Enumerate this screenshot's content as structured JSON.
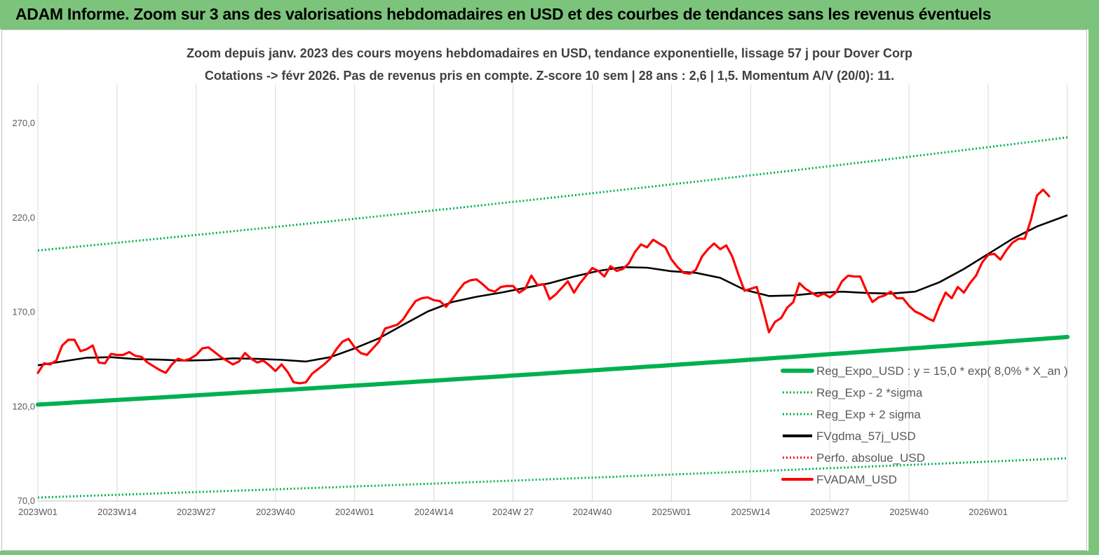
{
  "header": {
    "title": "ADAM Informe. Zoom sur 3 ans des valorisations hebdomadaires en USD et des courbes de tendances sans les revenus éventuels"
  },
  "chart_data": {
    "type": "line",
    "title_line1": "Zoom depuis janv. 2023 des cours moyens hebdomadaires en USD, tendance exponentielle, lissage 57 j pour Dover Corp",
    "title_line2": "Cotations -> févr 2026.  Pas de revenus pris en compte. Z-score 10 sem  | 28 ans : 2,6  | 1,5. Momentum A/V (20/0): 11.",
    "ylim": [
      70,
      290
    ],
    "y_ticks": [
      70,
      120,
      170,
      220,
      270
    ],
    "y_tick_labels": [
      "70,0",
      "120,0",
      "170,0",
      "220,0",
      "270,0"
    ],
    "x_ticks": [
      0,
      13,
      26,
      39,
      52,
      65,
      78,
      91,
      104,
      117,
      130,
      143,
      156
    ],
    "x_tick_labels": [
      "2023W01",
      "2023W14",
      "2023W27",
      "2023W40",
      "2024W01",
      "2024W14",
      "2024W 27",
      "2024W40",
      "2025W01",
      "2025W14",
      "2025W27",
      "2025W40",
      "2026W01"
    ],
    "x_max": 169,
    "grid_vertical": true,
    "legend_position": "bottom-right",
    "series": [
      {
        "name": "Reg_Expo_USD : y = 15,0 * exp( 8,0% *  X_an )",
        "color": "#00b050",
        "style": "solid-thick",
        "start": 120.7,
        "end": 156.5
      },
      {
        "name": "Reg_Exp - 2 *sigma",
        "color": "#00b050",
        "style": "dotted",
        "start": 71.5,
        "end": 92.3
      },
      {
        "name": "Reg_Exp + 2 sigma",
        "color": "#00b050",
        "style": "dotted",
        "start": 202.3,
        "end": 262.2
      },
      {
        "name": "FVgdma_57j_USD",
        "color": "#000000",
        "style": "solid",
        "points": [
          [
            0,
            141.5
          ],
          [
            4,
            143.5
          ],
          [
            8,
            145.5
          ],
          [
            12,
            145.8
          ],
          [
            16,
            144.8
          ],
          [
            20,
            144.5
          ],
          [
            24,
            144.0
          ],
          [
            28,
            144.3
          ],
          [
            32,
            145.2
          ],
          [
            36,
            144.9
          ],
          [
            40,
            144.4
          ],
          [
            44,
            143.5
          ],
          [
            48,
            145.8
          ],
          [
            52,
            150.5
          ],
          [
            56,
            155.8
          ],
          [
            60,
            163.0
          ],
          [
            64,
            170.0
          ],
          [
            68,
            175.0
          ],
          [
            72,
            177.8
          ],
          [
            76,
            180.0
          ],
          [
            80,
            182.5
          ],
          [
            84,
            185.0
          ],
          [
            88,
            188.5
          ],
          [
            92,
            191.5
          ],
          [
            96,
            193.5
          ],
          [
            100,
            193.2
          ],
          [
            104,
            191.3
          ],
          [
            108,
            190.5
          ],
          [
            112,
            187.8
          ],
          [
            116,
            181.5
          ],
          [
            120,
            178.2
          ],
          [
            124,
            178.5
          ],
          [
            128,
            179.8
          ],
          [
            132,
            180.5
          ],
          [
            136,
            179.8
          ],
          [
            140,
            179.5
          ],
          [
            144,
            180.5
          ],
          [
            148,
            185.5
          ],
          [
            152,
            192.5
          ],
          [
            156,
            200.5
          ],
          [
            160,
            208.5
          ],
          [
            164,
            215.0
          ],
          [
            169,
            221.0
          ]
        ]
      },
      {
        "name": "Perfo. absolue_USD",
        "color": "#ff0000",
        "style": "dotted",
        "points": []
      },
      {
        "name": "FVADAM_USD",
        "color": "#ff0000",
        "style": "solid-thick",
        "points": [
          [
            0,
            137.5
          ],
          [
            1,
            142.5
          ],
          [
            2,
            142
          ],
          [
            3,
            144
          ],
          [
            4,
            152
          ],
          [
            5,
            155
          ],
          [
            6,
            155
          ],
          [
            7,
            149
          ],
          [
            8,
            150
          ],
          [
            9,
            152
          ],
          [
            10,
            143
          ],
          [
            11,
            142.5
          ],
          [
            12,
            147.5
          ],
          [
            13,
            147
          ],
          [
            14,
            147
          ],
          [
            15,
            148.5
          ],
          [
            16,
            146.5
          ],
          [
            17,
            146
          ],
          [
            18,
            143
          ],
          [
            19,
            141
          ],
          [
            20,
            139
          ],
          [
            21,
            137.5
          ],
          [
            22,
            142
          ],
          [
            23,
            145
          ],
          [
            24,
            144
          ],
          [
            25,
            145
          ],
          [
            26,
            147
          ],
          [
            27,
            150.5
          ],
          [
            28,
            151
          ],
          [
            29,
            148.5
          ],
          [
            30,
            146
          ],
          [
            31,
            144
          ],
          [
            32,
            142
          ],
          [
            33,
            143.5
          ],
          [
            34,
            148
          ],
          [
            35,
            145
          ],
          [
            36,
            143
          ],
          [
            37,
            144
          ],
          [
            38,
            141.5
          ],
          [
            39,
            138.5
          ],
          [
            40,
            142
          ],
          [
            41,
            138
          ],
          [
            42,
            132.5
          ],
          [
            43,
            132
          ],
          [
            44,
            132.5
          ],
          [
            45,
            137
          ],
          [
            46,
            139.5
          ],
          [
            47,
            142
          ],
          [
            48,
            145
          ],
          [
            49,
            150
          ],
          [
            50,
            154
          ],
          [
            51,
            155.5
          ],
          [
            52,
            151
          ],
          [
            53,
            148
          ],
          [
            54,
            147
          ],
          [
            55,
            150.5
          ],
          [
            56,
            154
          ],
          [
            57,
            161
          ],
          [
            58,
            162
          ],
          [
            59,
            163
          ],
          [
            60,
            166
          ],
          [
            61,
            171
          ],
          [
            62,
            175.5
          ],
          [
            63,
            177
          ],
          [
            64,
            177.5
          ],
          [
            65,
            176
          ],
          [
            66,
            175.5
          ],
          [
            67,
            172.5
          ],
          [
            68,
            176.5
          ],
          [
            69,
            181
          ],
          [
            70,
            185
          ],
          [
            71,
            186.5
          ],
          [
            72,
            187
          ],
          [
            73,
            184.5
          ],
          [
            74,
            181.5
          ],
          [
            75,
            180.5
          ],
          [
            76,
            183
          ],
          [
            77,
            183.5
          ],
          [
            78,
            183.5
          ],
          [
            79,
            180
          ],
          [
            80,
            182
          ],
          [
            81,
            189
          ],
          [
            82,
            184
          ],
          [
            83,
            184.5
          ],
          [
            84,
            176.5
          ],
          [
            85,
            179
          ],
          [
            86,
            182.5
          ],
          [
            87,
            186
          ],
          [
            88,
            180
          ],
          [
            89,
            185
          ],
          [
            90,
            189
          ],
          [
            91,
            193
          ],
          [
            92,
            191.5
          ],
          [
            93,
            188.5
          ],
          [
            94,
            194
          ],
          [
            95,
            191.5
          ],
          [
            96,
            192.5
          ],
          [
            97,
            195.5
          ],
          [
            98,
            201.5
          ],
          [
            99,
            205.5
          ],
          [
            100,
            204
          ],
          [
            101,
            208
          ],
          [
            102,
            206
          ],
          [
            103,
            204
          ],
          [
            104,
            197.5
          ],
          [
            105,
            193.5
          ],
          [
            106,
            190.5
          ],
          [
            107,
            190
          ],
          [
            108,
            192
          ],
          [
            109,
            199
          ],
          [
            110,
            203
          ],
          [
            111,
            206
          ],
          [
            112,
            203
          ],
          [
            113,
            205
          ],
          [
            114,
            199
          ],
          [
            115,
            189.5
          ],
          [
            116,
            181
          ],
          [
            117,
            182
          ],
          [
            118,
            183
          ],
          [
            119,
            171.5
          ],
          [
            120,
            159
          ],
          [
            121,
            164.5
          ],
          [
            122,
            166.5
          ],
          [
            123,
            172
          ],
          [
            124,
            175
          ],
          [
            125,
            185
          ],
          [
            126,
            182
          ],
          [
            127,
            180
          ],
          [
            128,
            178
          ],
          [
            129,
            179.5
          ],
          [
            130,
            177.5
          ],
          [
            131,
            180
          ],
          [
            132,
            186
          ],
          [
            133,
            189
          ],
          [
            134,
            188.5
          ],
          [
            135,
            188.5
          ],
          [
            136,
            181
          ],
          [
            137,
            175
          ],
          [
            138,
            177.5
          ],
          [
            139,
            178.5
          ],
          [
            140,
            180.5
          ],
          [
            141,
            177
          ],
          [
            142,
            177
          ],
          [
            143,
            173
          ],
          [
            144,
            170
          ],
          [
            145,
            168.5
          ],
          [
            146,
            166.5
          ],
          [
            147,
            165
          ],
          [
            148,
            173
          ],
          [
            149,
            180
          ],
          [
            150,
            177
          ],
          [
            151,
            183
          ],
          [
            152,
            180
          ],
          [
            153,
            185
          ],
          [
            154,
            189
          ],
          [
            155,
            196
          ],
          [
            156,
            200
          ],
          [
            157,
            200.5
          ],
          [
            158,
            197.5
          ],
          [
            159,
            202.5
          ],
          [
            160,
            206.5
          ],
          [
            161,
            208.5
          ],
          [
            162,
            208.5
          ],
          [
            163,
            218.5
          ],
          [
            164,
            231.5
          ],
          [
            165,
            234.5
          ],
          [
            166,
            231
          ]
        ]
      }
    ]
  }
}
